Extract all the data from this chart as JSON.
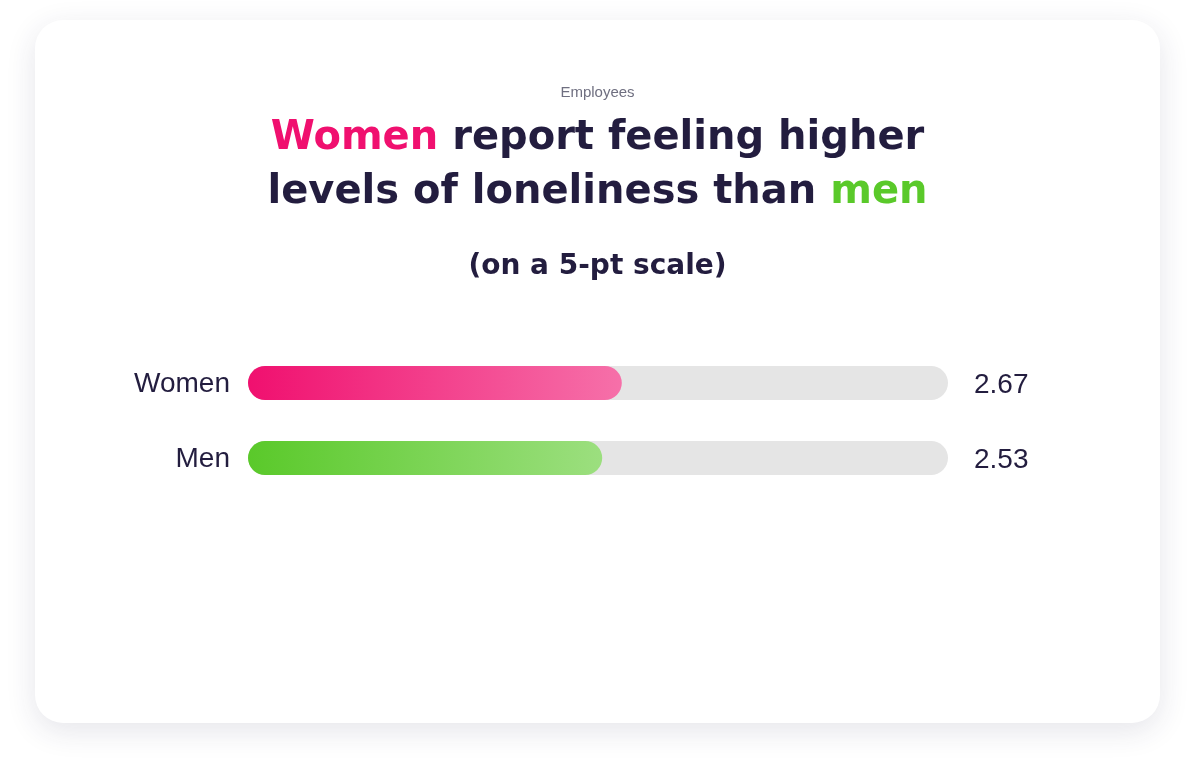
{
  "chart_data": {
    "type": "bar",
    "orientation": "horizontal",
    "title": "Women report feeling higher levels of loneliness than men",
    "subtitle": "(on a 5-pt scale)",
    "annotations": [
      "Employees"
    ],
    "categories": [
      "Women",
      "Men"
    ],
    "values": [
      2.67,
      2.53
    ],
    "colors": [
      "#f0106f",
      "#5ac92a"
    ],
    "xlim": [
      0,
      5
    ],
    "tick_labels": "y",
    "data_labels": true
  }
}
